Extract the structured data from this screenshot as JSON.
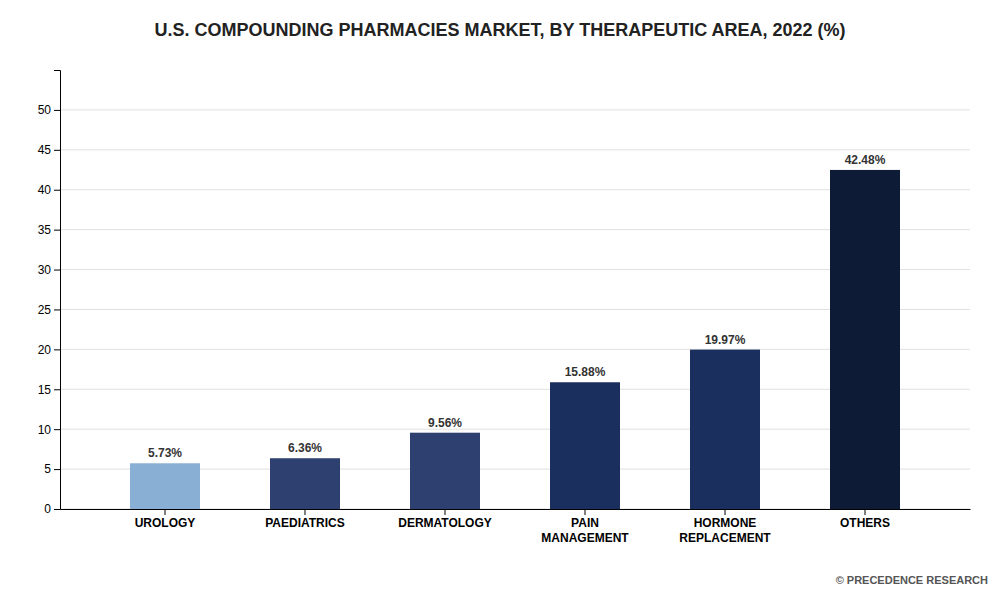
{
  "chart_data": {
    "type": "bar",
    "title": "U.S. COMPOUNDING PHARMACIES MARKET, BY THERAPEUTIC AREA, 2022 (%)",
    "categories": [
      "UROLOGY",
      "PAEDIATRICS",
      "DERMATOLOGY",
      "PAIN\nMANAGEMENT",
      "HORMONE\nREPLACEMENT",
      "OTHERS"
    ],
    "values": [
      5.73,
      6.36,
      9.56,
      15.88,
      19.97,
      42.48
    ],
    "value_labels": [
      "5.73%",
      "6.36%",
      "9.56%",
      "15.88%",
      "19.97%",
      "42.48%"
    ],
    "data_labels": true,
    "colors": [
      "#8aafd4",
      "#2d4070",
      "#2d4070",
      "#1b2f5e",
      "#1b2f5e",
      "#0d1b36"
    ],
    "ylim": [
      0,
      55
    ],
    "yticks": [
      0,
      5,
      10,
      15,
      20,
      25,
      30,
      35,
      40,
      45,
      50
    ],
    "grid": true,
    "annotation": "© PRECEDENCE RESEARCH"
  }
}
